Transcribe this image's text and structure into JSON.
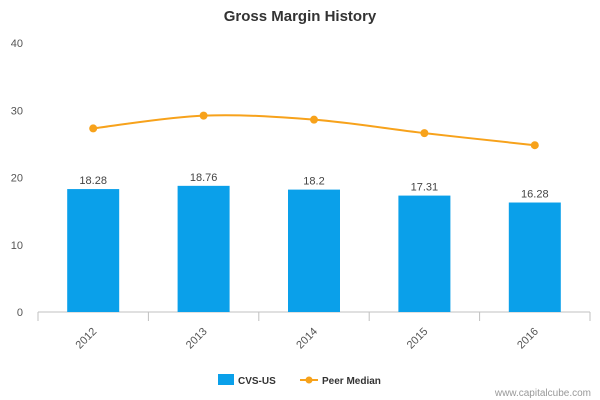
{
  "chart_data": {
    "type": "bar",
    "title": "Gross Margin History",
    "xlabel": "",
    "ylabel": "",
    "categories": [
      "2012",
      "2013",
      "2014",
      "2015",
      "2016"
    ],
    "ylim": [
      0,
      40
    ],
    "yticks": [
      0,
      10,
      20,
      30,
      40
    ],
    "grid": false,
    "legend_position": "bottom-center",
    "series": [
      {
        "name": "CVS-US",
        "type": "bar",
        "color": "#0aa0ea",
        "values": [
          18.28,
          18.76,
          18.2,
          17.31,
          16.28
        ],
        "data_labels": [
          "18.28",
          "18.76",
          "18.2",
          "17.31",
          "16.28"
        ]
      },
      {
        "name": "Peer Median",
        "type": "line",
        "color": "#f7a21b",
        "values": [
          27.3,
          29.2,
          28.6,
          26.6,
          24.8
        ]
      }
    ]
  },
  "watermark": "www.capitalcube.com"
}
